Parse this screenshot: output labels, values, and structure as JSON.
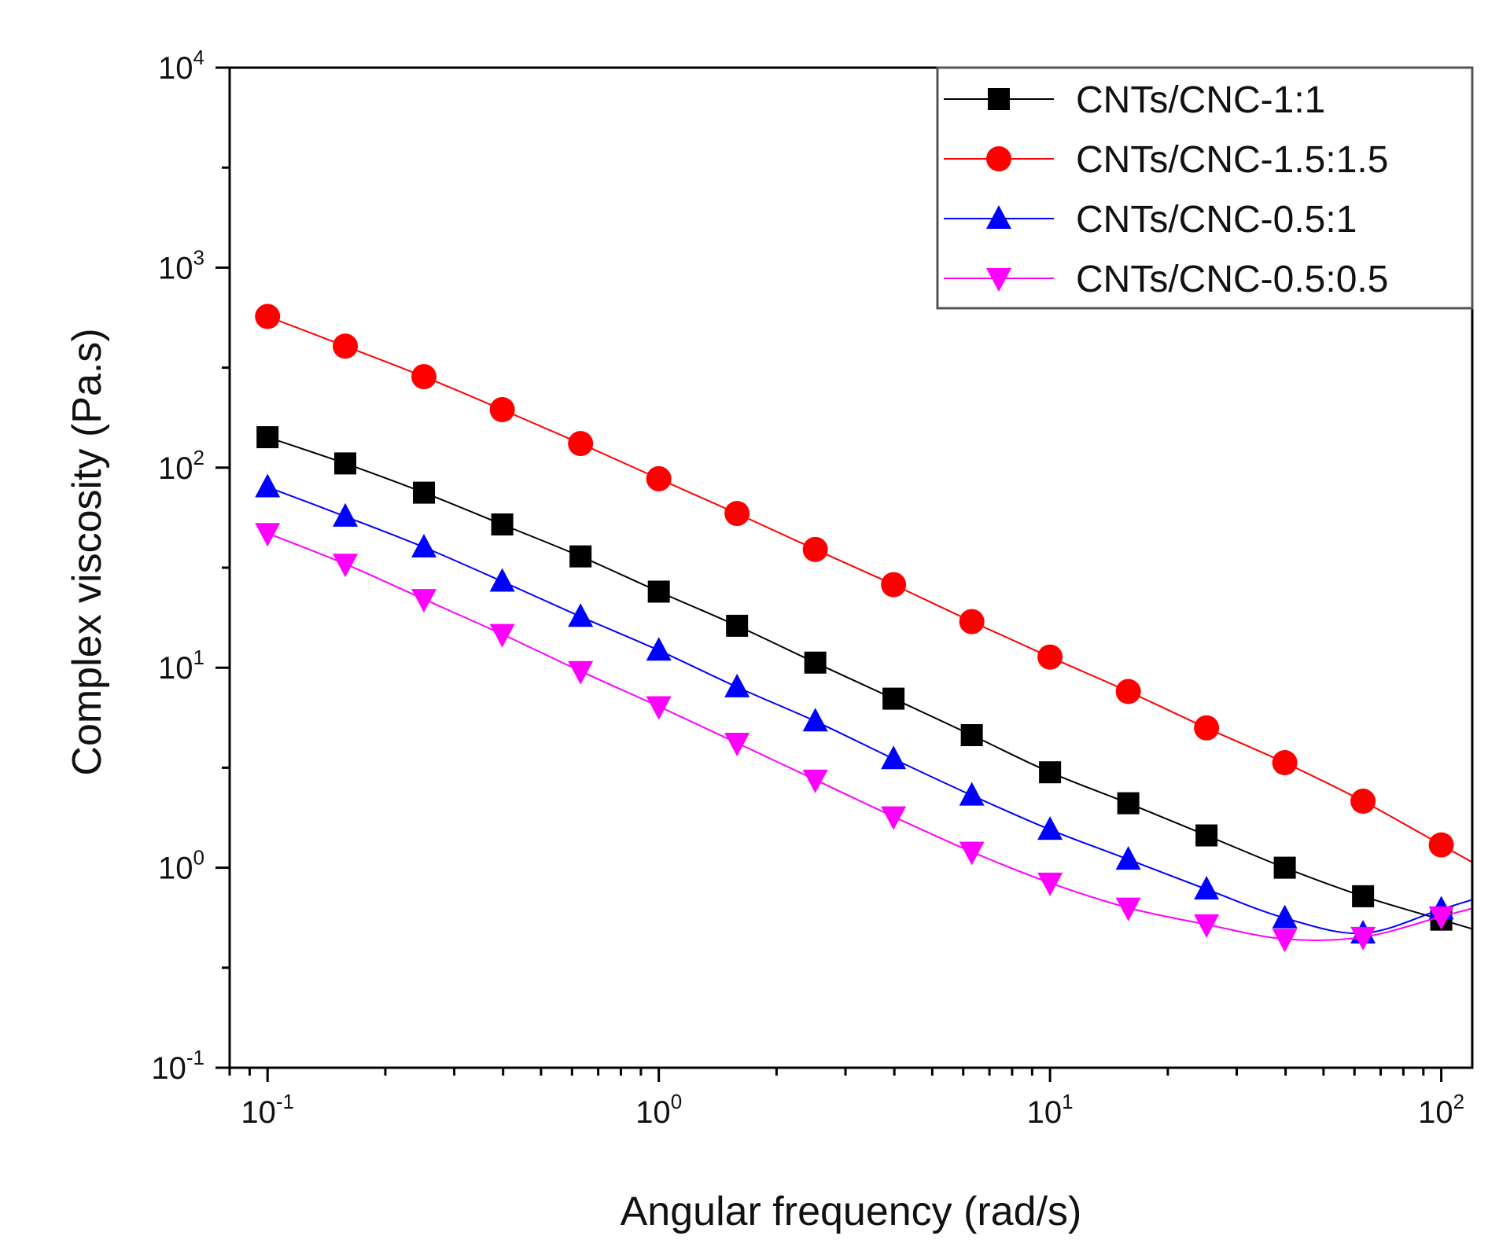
{
  "chart_data": {
    "type": "line",
    "title": "",
    "xlabel": "Angular frequency (rad/s)",
    "ylabel": "Complex viscosity (Pa.s)",
    "xscale": "log",
    "yscale": "log",
    "xlim": [
      0.08,
      120
    ],
    "ylim": [
      0.1,
      10000
    ],
    "grid": false,
    "legend_position": "top-right",
    "x_ticks": [
      {
        "base": "10",
        "exp": "-1",
        "value": 0.1
      },
      {
        "base": "10",
        "exp": "0",
        "value": 1
      },
      {
        "base": "10",
        "exp": "1",
        "value": 10
      },
      {
        "base": "10",
        "exp": "2",
        "value": 100
      }
    ],
    "y_ticks": [
      {
        "base": "10",
        "exp": "-1",
        "value": 0.1
      },
      {
        "base": "10",
        "exp": "0",
        "value": 1
      },
      {
        "base": "10",
        "exp": "1",
        "value": 10
      },
      {
        "base": "10",
        "exp": "2",
        "value": 100
      },
      {
        "base": "10",
        "exp": "3",
        "value": 1000
      },
      {
        "base": "10",
        "exp": "4",
        "value": 10000
      }
    ],
    "x": [
      0.1,
      0.158,
      0.251,
      0.398,
      0.631,
      1,
      1.585,
      2.512,
      3.981,
      6.31,
      10,
      15.85,
      25.12,
      39.81,
      63.1,
      100
    ],
    "series": [
      {
        "name": "CNTs/CNC-1:1",
        "color": "#000000",
        "marker": "square",
        "values": [
          142,
          105,
          75,
          52,
          36,
          24,
          16.2,
          10.6,
          7.0,
          4.6,
          3.0,
          2.1,
          1.45,
          1.0,
          0.72,
          0.55
        ]
      },
      {
        "name": "CNTs/CNC-1.5:1.5",
        "color": "#ff0000",
        "marker": "circle",
        "values": [
          570,
          405,
          285,
          195,
          132,
          88,
          59,
          39,
          26,
          17,
          11.3,
          7.6,
          5.0,
          3.35,
          2.15,
          1.3
        ]
      },
      {
        "name": "CNTs/CNC-0.5:1",
        "color": "#0000ff",
        "marker": "triangle-up",
        "values": [
          80,
          57,
          40,
          27,
          18,
          12.2,
          8.0,
          5.4,
          3.5,
          2.3,
          1.55,
          1.1,
          0.78,
          0.56,
          0.47,
          0.62
        ]
      },
      {
        "name": "CNTs/CNC-0.5:0.5",
        "color": "#ff00ff",
        "marker": "triangle-down",
        "values": [
          47,
          33,
          22,
          14.7,
          9.6,
          6.4,
          4.2,
          2.75,
          1.8,
          1.2,
          0.84,
          0.63,
          0.52,
          0.44,
          0.45,
          0.57
        ]
      }
    ]
  }
}
